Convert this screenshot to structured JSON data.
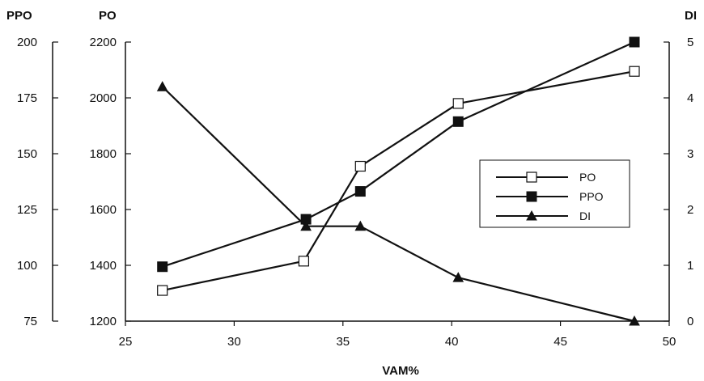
{
  "chart_data": {
    "type": "line",
    "xlabel": "VAM%",
    "xlim": [
      25,
      50
    ],
    "x_ticks": [
      "25",
      "30",
      "35",
      "40",
      "45",
      "50"
    ],
    "axes": {
      "ppo": {
        "title": "PPO",
        "range": [
          75,
          200
        ],
        "ticks": [
          "200",
          "175",
          "150",
          "125",
          "100",
          "75"
        ]
      },
      "po": {
        "title": "PO",
        "range": [
          1200,
          2200
        ],
        "ticks": [
          "2200",
          "2000",
          "1800",
          "1600",
          "1400",
          "1200"
        ]
      },
      "di": {
        "title": "DI",
        "range": [
          0,
          5
        ],
        "ticks": [
          "5",
          "4",
          "3",
          "2",
          "1",
          "0"
        ]
      }
    },
    "series": [
      {
        "name": "PO",
        "axis": "po",
        "marker": "open-square",
        "color": "#111111",
        "x": [
          26.7,
          33.2,
          35.8,
          40.3,
          48.4
        ],
        "y": [
          1310,
          1415,
          1755,
          1980,
          2095
        ]
      },
      {
        "name": "PPO",
        "axis": "po",
        "marker": "filled-square",
        "color": "#111111",
        "x": [
          26.7,
          33.3,
          35.8,
          40.3,
          48.4
        ],
        "y": [
          1395,
          1565,
          1665,
          1915,
          2200
        ]
      },
      {
        "name": "DI",
        "axis": "di",
        "marker": "filled-triangle",
        "color": "#111111",
        "x": [
          26.7,
          33.3,
          35.8,
          40.3,
          48.4
        ],
        "y": [
          4.2,
          1.7,
          1.7,
          0.78,
          0.0
        ]
      }
    ],
    "legend": {
      "position": "right-middle",
      "entries": [
        "PO",
        "PPO",
        "DI"
      ]
    },
    "grid": false
  }
}
